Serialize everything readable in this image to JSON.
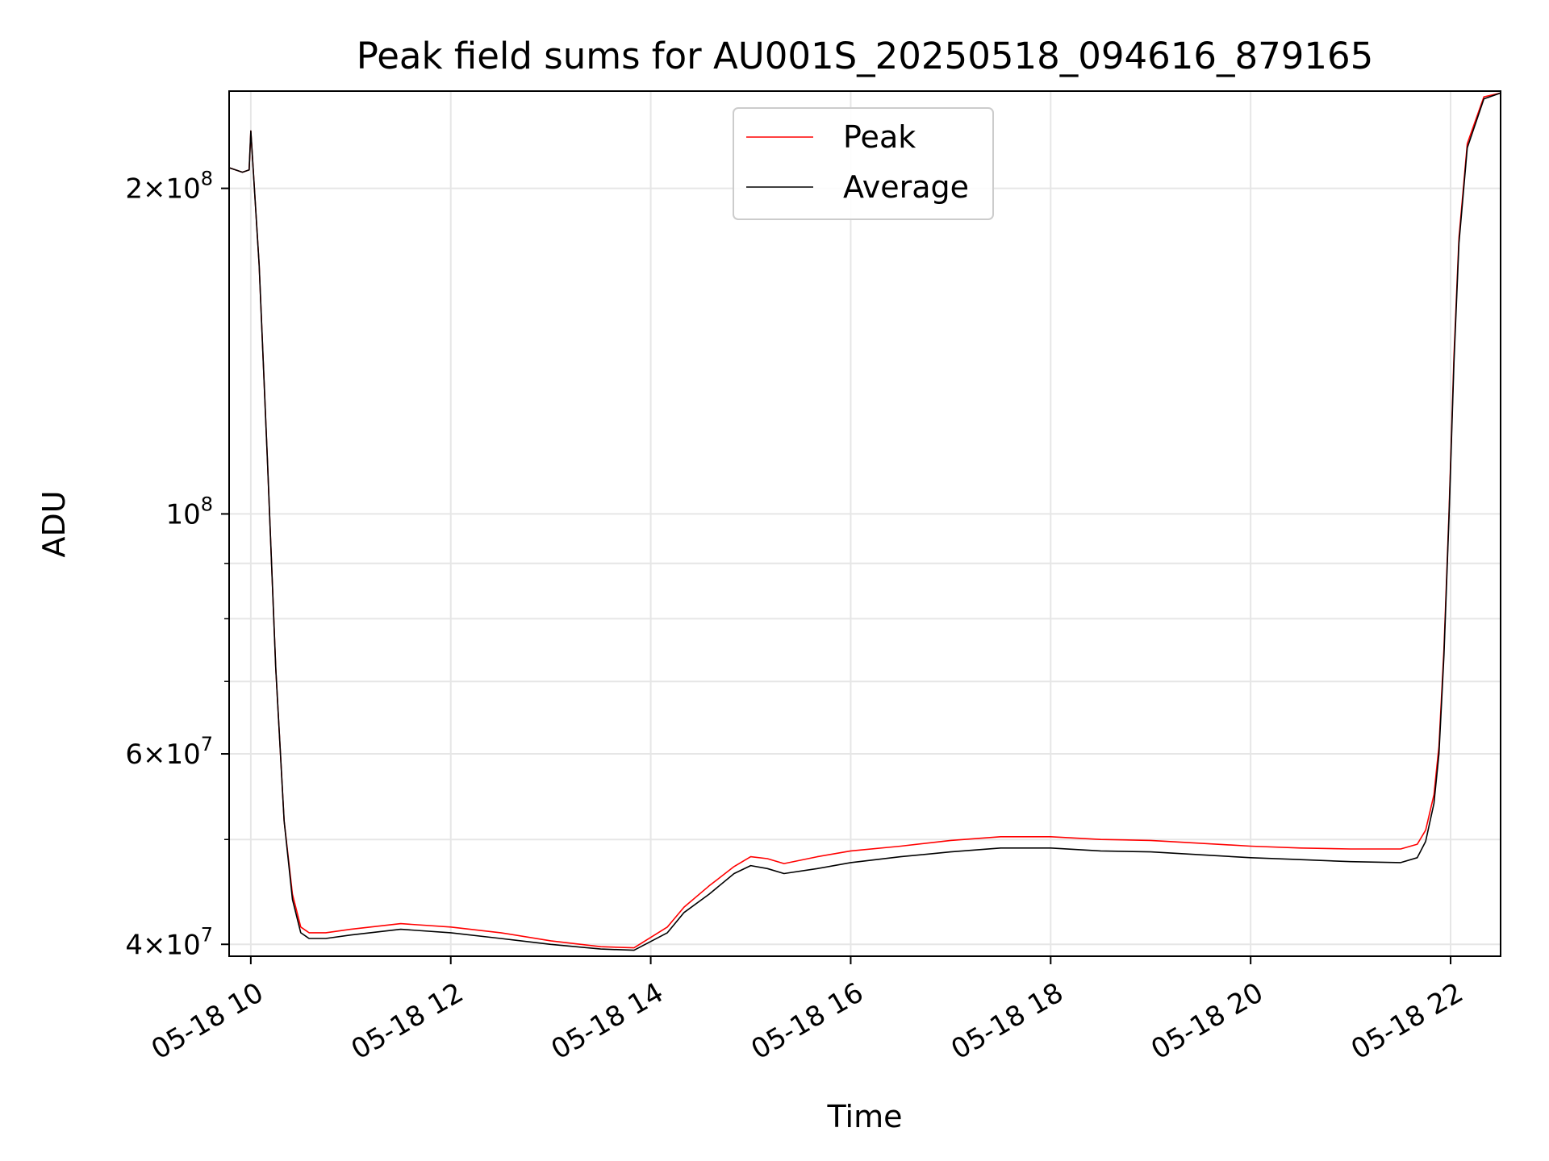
{
  "chart_data": {
    "type": "line",
    "title": "Peak field sums for AU001S_20250518_094616_879165",
    "xlabel": "Time",
    "ylabel": "ADU",
    "y_scale": "log",
    "xlim": [
      "2025-05-18 09:47",
      "2025-05-18 22:30"
    ],
    "ylim": [
      39000000,
      246000000
    ],
    "grid": true,
    "legend_position": "top-center",
    "x_ticks": [
      {
        "label": "05-18 10",
        "t": "2025-05-18 10:00"
      },
      {
        "label": "05-18 12",
        "t": "2025-05-18 12:00"
      },
      {
        "label": "05-18 14",
        "t": "2025-05-18 14:00"
      },
      {
        "label": "05-18 16",
        "t": "2025-05-18 16:00"
      },
      {
        "label": "05-18 18",
        "t": "2025-05-18 18:00"
      },
      {
        "label": "05-18 20",
        "t": "2025-05-18 20:00"
      },
      {
        "label": "05-18 22",
        "t": "2025-05-18 22:00"
      }
    ],
    "y_ticks": [
      {
        "value": 40000000,
        "base": "4",
        "exp": "7",
        "mult": true
      },
      {
        "value": 60000000,
        "base": "6",
        "exp": "7",
        "mult": true
      },
      {
        "value": 100000000,
        "base": "",
        "exp": "8",
        "mult": false
      },
      {
        "value": 200000000,
        "base": "2",
        "exp": "8",
        "mult": true
      }
    ],
    "y_minor_ticks": [
      50000000,
      70000000,
      80000000,
      90000000
    ],
    "series": [
      {
        "name": "Peak",
        "color": "#ff0000",
        "x": [
          "2025-05-18 09:47",
          "2025-05-18 09:55",
          "2025-05-18 09:59",
          "2025-05-18 10:00",
          "2025-05-18 10:05",
          "2025-05-18 10:10",
          "2025-05-18 10:15",
          "2025-05-18 10:20",
          "2025-05-18 10:25",
          "2025-05-18 10:30",
          "2025-05-18 10:35",
          "2025-05-18 10:45",
          "2025-05-18 11:00",
          "2025-05-18 11:30",
          "2025-05-18 12:00",
          "2025-05-18 12:30",
          "2025-05-18 13:00",
          "2025-05-18 13:30",
          "2025-05-18 13:50",
          "2025-05-18 14:10",
          "2025-05-18 14:20",
          "2025-05-18 14:35",
          "2025-05-18 14:50",
          "2025-05-18 15:00",
          "2025-05-18 15:10",
          "2025-05-18 15:20",
          "2025-05-18 15:40",
          "2025-05-18 16:00",
          "2025-05-18 16:30",
          "2025-05-18 17:00",
          "2025-05-18 17:30",
          "2025-05-18 18:00",
          "2025-05-18 18:30",
          "2025-05-18 19:00",
          "2025-05-18 19:30",
          "2025-05-18 20:00",
          "2025-05-18 20:30",
          "2025-05-18 21:00",
          "2025-05-18 21:30",
          "2025-05-18 21:40",
          "2025-05-18 21:45",
          "2025-05-18 21:50",
          "2025-05-18 21:53",
          "2025-05-18 21:56",
          "2025-05-18 21:59",
          "2025-05-18 22:02",
          "2025-05-18 22:05",
          "2025-05-18 22:10",
          "2025-05-18 22:20",
          "2025-05-18 22:30"
        ],
        "y": [
          209000000,
          207000000,
          208000000,
          226000000,
          170000000,
          112000000,
          72000000,
          52000000,
          44500000,
          41500000,
          41000000,
          41000000,
          41300000,
          41800000,
          41500000,
          41000000,
          40300000,
          39800000,
          39700000,
          41500000,
          43300000,
          45300000,
          47200000,
          48200000,
          48000000,
          47500000,
          48200000,
          48800000,
          49300000,
          49900000,
          50300000,
          50300000,
          50000000,
          49900000,
          49600000,
          49300000,
          49100000,
          49000000,
          49000000,
          49500000,
          51000000,
          55000000,
          61000000,
          75000000,
          100000000,
          140000000,
          180000000,
          220000000,
          243000000,
          245000000
        ]
      },
      {
        "name": "Average",
        "color": "#000000",
        "x": [
          "2025-05-18 09:47",
          "2025-05-18 09:55",
          "2025-05-18 09:59",
          "2025-05-18 10:00",
          "2025-05-18 10:05",
          "2025-05-18 10:10",
          "2025-05-18 10:15",
          "2025-05-18 10:20",
          "2025-05-18 10:25",
          "2025-05-18 10:30",
          "2025-05-18 10:35",
          "2025-05-18 10:45",
          "2025-05-18 11:00",
          "2025-05-18 11:30",
          "2025-05-18 12:00",
          "2025-05-18 12:30",
          "2025-05-18 13:00",
          "2025-05-18 13:30",
          "2025-05-18 13:50",
          "2025-05-18 14:10",
          "2025-05-18 14:20",
          "2025-05-18 14:35",
          "2025-05-18 14:50",
          "2025-05-18 15:00",
          "2025-05-18 15:10",
          "2025-05-18 15:20",
          "2025-05-18 15:40",
          "2025-05-18 16:00",
          "2025-05-18 16:30",
          "2025-05-18 17:00",
          "2025-05-18 17:30",
          "2025-05-18 18:00",
          "2025-05-18 18:30",
          "2025-05-18 19:00",
          "2025-05-18 19:30",
          "2025-05-18 20:00",
          "2025-05-18 20:30",
          "2025-05-18 21:00",
          "2025-05-18 21:30",
          "2025-05-18 21:40",
          "2025-05-18 21:45",
          "2025-05-18 21:50",
          "2025-05-18 21:53",
          "2025-05-18 21:56",
          "2025-05-18 21:59",
          "2025-05-18 22:02",
          "2025-05-18 22:05",
          "2025-05-18 22:10",
          "2025-05-18 22:20",
          "2025-05-18 22:30"
        ],
        "y": [
          209000000,
          207000000,
          208000000,
          226000000,
          170000000,
          112000000,
          72000000,
          52000000,
          44000000,
          41000000,
          40500000,
          40500000,
          40800000,
          41300000,
          41000000,
          40500000,
          40000000,
          39600000,
          39500000,
          41000000,
          42800000,
          44500000,
          46500000,
          47300000,
          47000000,
          46500000,
          47000000,
          47600000,
          48200000,
          48700000,
          49100000,
          49100000,
          48800000,
          48700000,
          48400000,
          48100000,
          47900000,
          47700000,
          47600000,
          48100000,
          49800000,
          54000000,
          60000000,
          74000000,
          99000000,
          138000000,
          178000000,
          218000000,
          242000000,
          245000000
        ]
      }
    ]
  }
}
